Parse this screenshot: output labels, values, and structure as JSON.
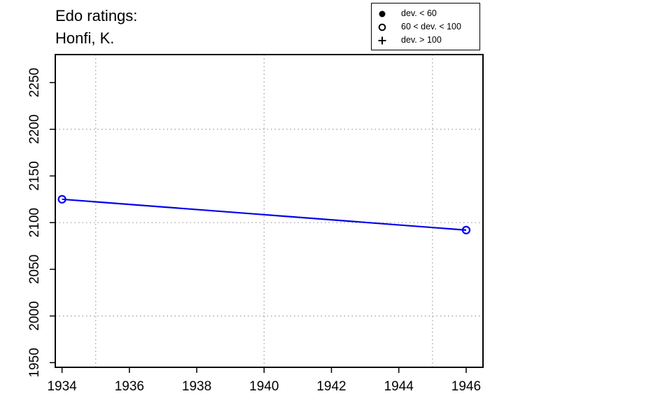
{
  "title": {
    "line1": "Edo ratings:",
    "line2": "Honfi, K."
  },
  "legend": {
    "entries": [
      {
        "symbol": "filled-circle",
        "label": "dev. < 60"
      },
      {
        "symbol": "open-circle",
        "label": "60 < dev. < 100"
      },
      {
        "symbol": "plus",
        "label": "dev. > 100"
      }
    ]
  },
  "chart_data": {
    "type": "line",
    "title": "Edo ratings: Honfi, K.",
    "xlabel": "",
    "ylabel": "",
    "xlim": [
      1933.8,
      1946.5
    ],
    "ylim": [
      1945,
      2280
    ],
    "x_ticks": [
      1934,
      1936,
      1938,
      1940,
      1942,
      1944,
      1946
    ],
    "y_ticks": [
      1950,
      2000,
      2050,
      2100,
      2150,
      2200,
      2250
    ],
    "x_grid": [
      1935,
      1940,
      1945
    ],
    "y_grid": [
      2000,
      2100,
      2200
    ],
    "grid": true,
    "legend_position": "top-right",
    "series": [
      {
        "color": "#0000ee",
        "marker": "open-circle",
        "points": [
          {
            "x": 1934,
            "y": 2125
          },
          {
            "x": 1946,
            "y": 2092
          }
        ]
      }
    ]
  }
}
